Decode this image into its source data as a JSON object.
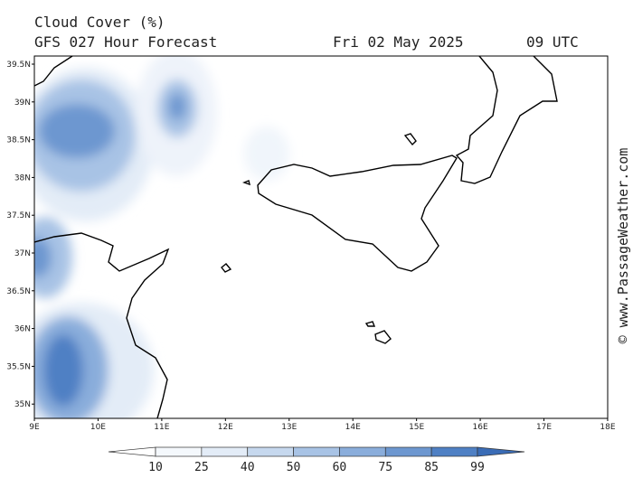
{
  "title": "Cloud Cover (%)",
  "subtitle": "GFS 027 Hour Forecast",
  "date": "Fri 02 May 2025",
  "time": "09 UTC",
  "credit": "© www.PassageWeather.com",
  "lat_ticks": [
    {
      "value": 39.5,
      "label": "39.5N"
    },
    {
      "value": 39,
      "label": "39N"
    },
    {
      "value": 38.5,
      "label": "38.5N"
    },
    {
      "value": 38,
      "label": "38N"
    },
    {
      "value": 37.5,
      "label": "37.5N"
    },
    {
      "value": 37,
      "label": "37N"
    },
    {
      "value": 36.5,
      "label": "36.5N"
    },
    {
      "value": 36,
      "label": "36N"
    },
    {
      "value": 35.5,
      "label": "35.5N"
    },
    {
      "value": 35,
      "label": "35N"
    }
  ],
  "lon_ticks": [
    {
      "value": 9,
      "label": "9E"
    },
    {
      "value": 10,
      "label": "10E"
    },
    {
      "value": 11,
      "label": "11E"
    },
    {
      "value": 12,
      "label": "12E"
    },
    {
      "value": 13,
      "label": "13E"
    },
    {
      "value": 14,
      "label": "14E"
    },
    {
      "value": 15,
      "label": "15E"
    },
    {
      "value": 16,
      "label": "16E"
    },
    {
      "value": 17,
      "label": "17E"
    },
    {
      "value": 18,
      "label": "18E"
    }
  ],
  "colorbar": {
    "levels": [
      10,
      25,
      40,
      50,
      60,
      75,
      85,
      99
    ],
    "colors": [
      "#ffffff",
      "#f4f8fc",
      "#e3ecf7",
      "#c6d8ee",
      "#a8c3e5",
      "#8aaddb",
      "#6d97d0",
      "#4f80c4",
      "#3a6cb6"
    ]
  }
}
